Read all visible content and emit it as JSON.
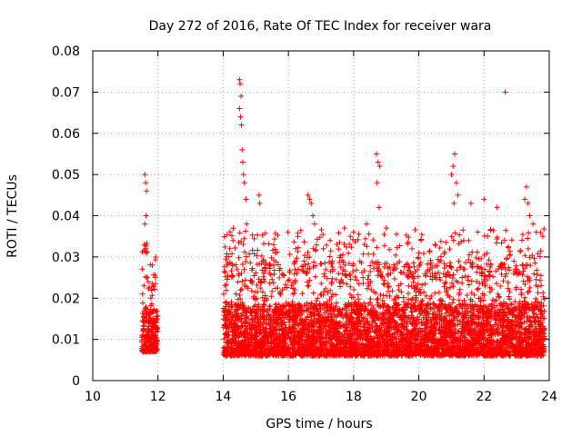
{
  "chart_data": {
    "type": "scatter",
    "title": "Day 272 of 2016, Rate Of TEC Index for receiver wara",
    "xlabel": "GPS time / hours",
    "ylabel": "ROTI / TECUs",
    "xlim": [
      10,
      24
    ],
    "ylim": [
      0,
      0.08
    ],
    "x_ticks": [
      "10",
      "12",
      "14",
      "16",
      "18",
      "20",
      "22",
      "24"
    ],
    "y_ticks": [
      "0",
      "0.01",
      "0.02",
      "0.03",
      "0.04",
      "0.05",
      "0.06",
      "0.07",
      "0.08"
    ],
    "grid": true,
    "marker": "+",
    "series": [
      {
        "name": "ROTI",
        "color": "#ff0000",
        "segments": [
          {
            "x_start": 11.5,
            "x_end": 12.0,
            "baseline_low": 0.003,
            "baseline_high": 0.022
          },
          {
            "x_start": 14.0,
            "x_end": 23.85,
            "baseline_low": 0.002,
            "baseline_high": 0.025
          }
        ],
        "x": [
          11.6,
          11.62,
          11.65,
          11.63,
          11.6,
          11.58,
          11.62,
          11.64,
          11.66,
          11.7,
          14.5,
          14.52,
          14.55,
          14.5,
          14.53,
          14.56,
          14.58,
          14.6,
          14.62,
          14.65,
          14.7,
          14.72,
          15.1,
          15.12,
          16.6,
          16.65,
          16.7,
          16.75,
          16.8,
          18.7,
          18.75,
          18.8,
          18.72,
          18.78,
          21.0,
          21.05,
          21.1,
          21.15,
          21.2,
          21.08,
          22.65,
          23.3,
          23.25,
          23.35,
          23.4,
          23.5,
          23.6,
          14.1,
          14.2,
          14.3,
          15.6,
          17.9,
          18.0,
          18.4,
          19.0,
          20.0,
          20.5,
          21.6,
          22.0,
          22.4,
          23.8
        ],
        "y": [
          0.05,
          0.048,
          0.046,
          0.04,
          0.038,
          0.033,
          0.032,
          0.031,
          0.025,
          0.024,
          0.073,
          0.072,
          0.069,
          0.066,
          0.064,
          0.062,
          0.056,
          0.053,
          0.05,
          0.048,
          0.044,
          0.038,
          0.045,
          0.043,
          0.045,
          0.044,
          0.043,
          0.04,
          0.038,
          0.055,
          0.053,
          0.052,
          0.048,
          0.042,
          0.05,
          0.052,
          0.055,
          0.048,
          0.045,
          0.043,
          0.07,
          0.047,
          0.044,
          0.043,
          0.04,
          0.038,
          0.036,
          0.03,
          0.032,
          0.034,
          0.031,
          0.035,
          0.036,
          0.038,
          0.037,
          0.031,
          0.033,
          0.043,
          0.044,
          0.042,
          0.035
        ]
      }
    ]
  }
}
